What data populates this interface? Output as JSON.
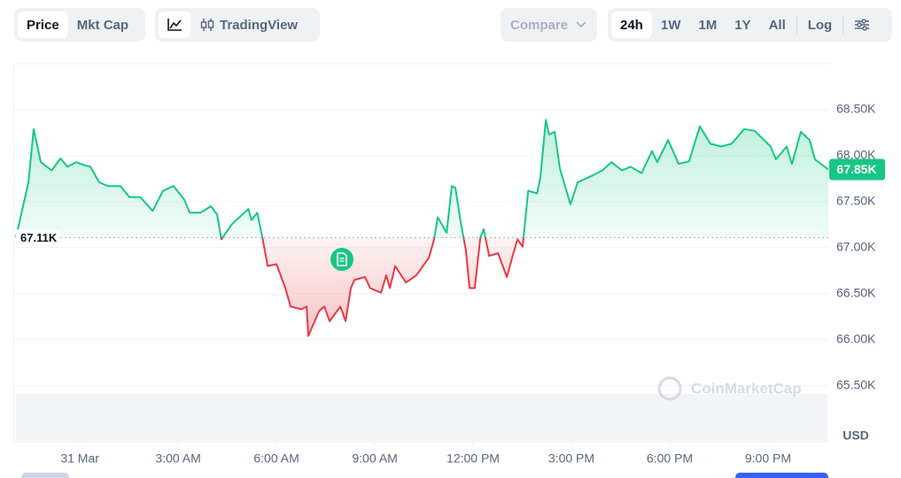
{
  "toolbar": {
    "view_tabs": [
      "Price",
      "Mkt Cap"
    ],
    "chart_tool": "TradingView",
    "compare": "Compare",
    "ranges": [
      "24h",
      "1W",
      "1M",
      "1Y",
      "All"
    ],
    "log": "Log"
  },
  "chart_data": {
    "type": "line",
    "x": [
      -1.95,
      -1.57,
      -1.41,
      -1.19,
      -0.86,
      -0.59,
      -0.38,
      -0.11,
      0.11,
      0.32,
      0.59,
      0.86,
      1.24,
      1.51,
      1.84,
      2.22,
      2.54,
      2.86,
      3.19,
      3.35,
      3.68,
      4.0,
      4.19,
      4.32,
      4.65,
      5.14,
      5.24,
      5.41,
      5.57,
      5.73,
      6.0,
      6.27,
      6.43,
      6.76,
      6.92,
      6.97,
      7.3,
      7.46,
      7.62,
      7.95,
      8.11,
      8.27,
      8.38,
      8.7,
      8.86,
      9.19,
      9.35,
      9.46,
      9.62,
      9.95,
      10.27,
      10.65,
      10.81,
      10.92,
      11.19,
      11.35,
      11.46,
      11.62,
      11.78,
      11.89,
      12.05,
      12.22,
      12.32,
      12.49,
      12.76,
      13.03,
      13.19,
      13.35,
      13.51,
      13.68,
      13.95,
      14.05,
      14.22,
      14.32,
      14.49,
      14.65,
      14.97,
      15.19,
      15.62,
      15.95,
      16.22,
      16.54,
      16.81,
      17.14,
      17.46,
      17.62,
      17.95,
      18.27,
      18.59,
      18.92,
      19.24,
      19.57,
      19.89,
      20.27,
      20.59,
      21.08,
      21.24,
      21.57,
      21.73,
      22.0,
      22.27,
      22.43,
      22.84
    ],
    "values": [
      67.11,
      67.71,
      68.29,
      67.93,
      67.84,
      67.97,
      67.88,
      67.93,
      67.9,
      67.88,
      67.71,
      67.67,
      67.67,
      67.55,
      67.55,
      67.4,
      67.62,
      67.67,
      67.52,
      67.38,
      67.38,
      67.45,
      67.36,
      67.09,
      67.26,
      67.42,
      67.3,
      67.38,
      67.11,
      66.8,
      66.82,
      66.56,
      66.36,
      66.33,
      66.36,
      66.04,
      66.31,
      66.36,
      66.2,
      66.36,
      66.2,
      66.56,
      66.65,
      66.68,
      66.56,
      66.51,
      66.7,
      66.56,
      66.8,
      66.62,
      66.7,
      66.89,
      67.09,
      67.33,
      67.16,
      67.67,
      67.65,
      67.28,
      66.97,
      66.56,
      66.56,
      67.11,
      67.2,
      66.91,
      66.94,
      66.68,
      66.89,
      67.09,
      67.01,
      67.62,
      67.59,
      67.76,
      68.39,
      68.23,
      68.26,
      67.86,
      67.47,
      67.71,
      67.78,
      67.84,
      67.93,
      67.84,
      67.88,
      67.81,
      68.05,
      67.93,
      68.17,
      67.91,
      67.94,
      68.32,
      68.13,
      68.1,
      68.13,
      68.29,
      68.27,
      68.1,
      67.96,
      68.1,
      67.91,
      68.26,
      68.17,
      67.96,
      67.85
    ],
    "color_above": "#16c784",
    "color_below": "#ea3943",
    "baseline": {
      "value": 67.11,
      "label": "67.11K"
    },
    "last_price": {
      "value": 67.85,
      "label": "67.85K"
    },
    "xlim": [
      -1.95,
      22.84
    ],
    "xticks": [
      {
        "value": 0,
        "label": "31 Mar"
      },
      {
        "value": 3,
        "label": "3:00 AM"
      },
      {
        "value": 6,
        "label": "6:00 AM"
      },
      {
        "value": 9,
        "label": "9:00 AM"
      },
      {
        "value": 12,
        "label": "12:00 PM"
      },
      {
        "value": 15,
        "label": "3:00 PM"
      },
      {
        "value": 18,
        "label": "6:00 PM"
      },
      {
        "value": 21,
        "label": "9:00 PM"
      }
    ],
    "ylim": [
      64.88,
      69.0
    ],
    "yticks": [
      {
        "value": 65.5,
        "label": "65.50K"
      },
      {
        "value": 66.0,
        "label": "66.00K"
      },
      {
        "value": 66.5,
        "label": "66.50K"
      },
      {
        "value": 67.0,
        "label": "67.00K"
      },
      {
        "value": 67.5,
        "label": "67.50K"
      },
      {
        "value": 68.0,
        "label": "68.00K"
      },
      {
        "value": 68.5,
        "label": "68.50K"
      }
    ],
    "y_unit": "USD",
    "watermark": "CoinMarketCap",
    "grid": true
  }
}
